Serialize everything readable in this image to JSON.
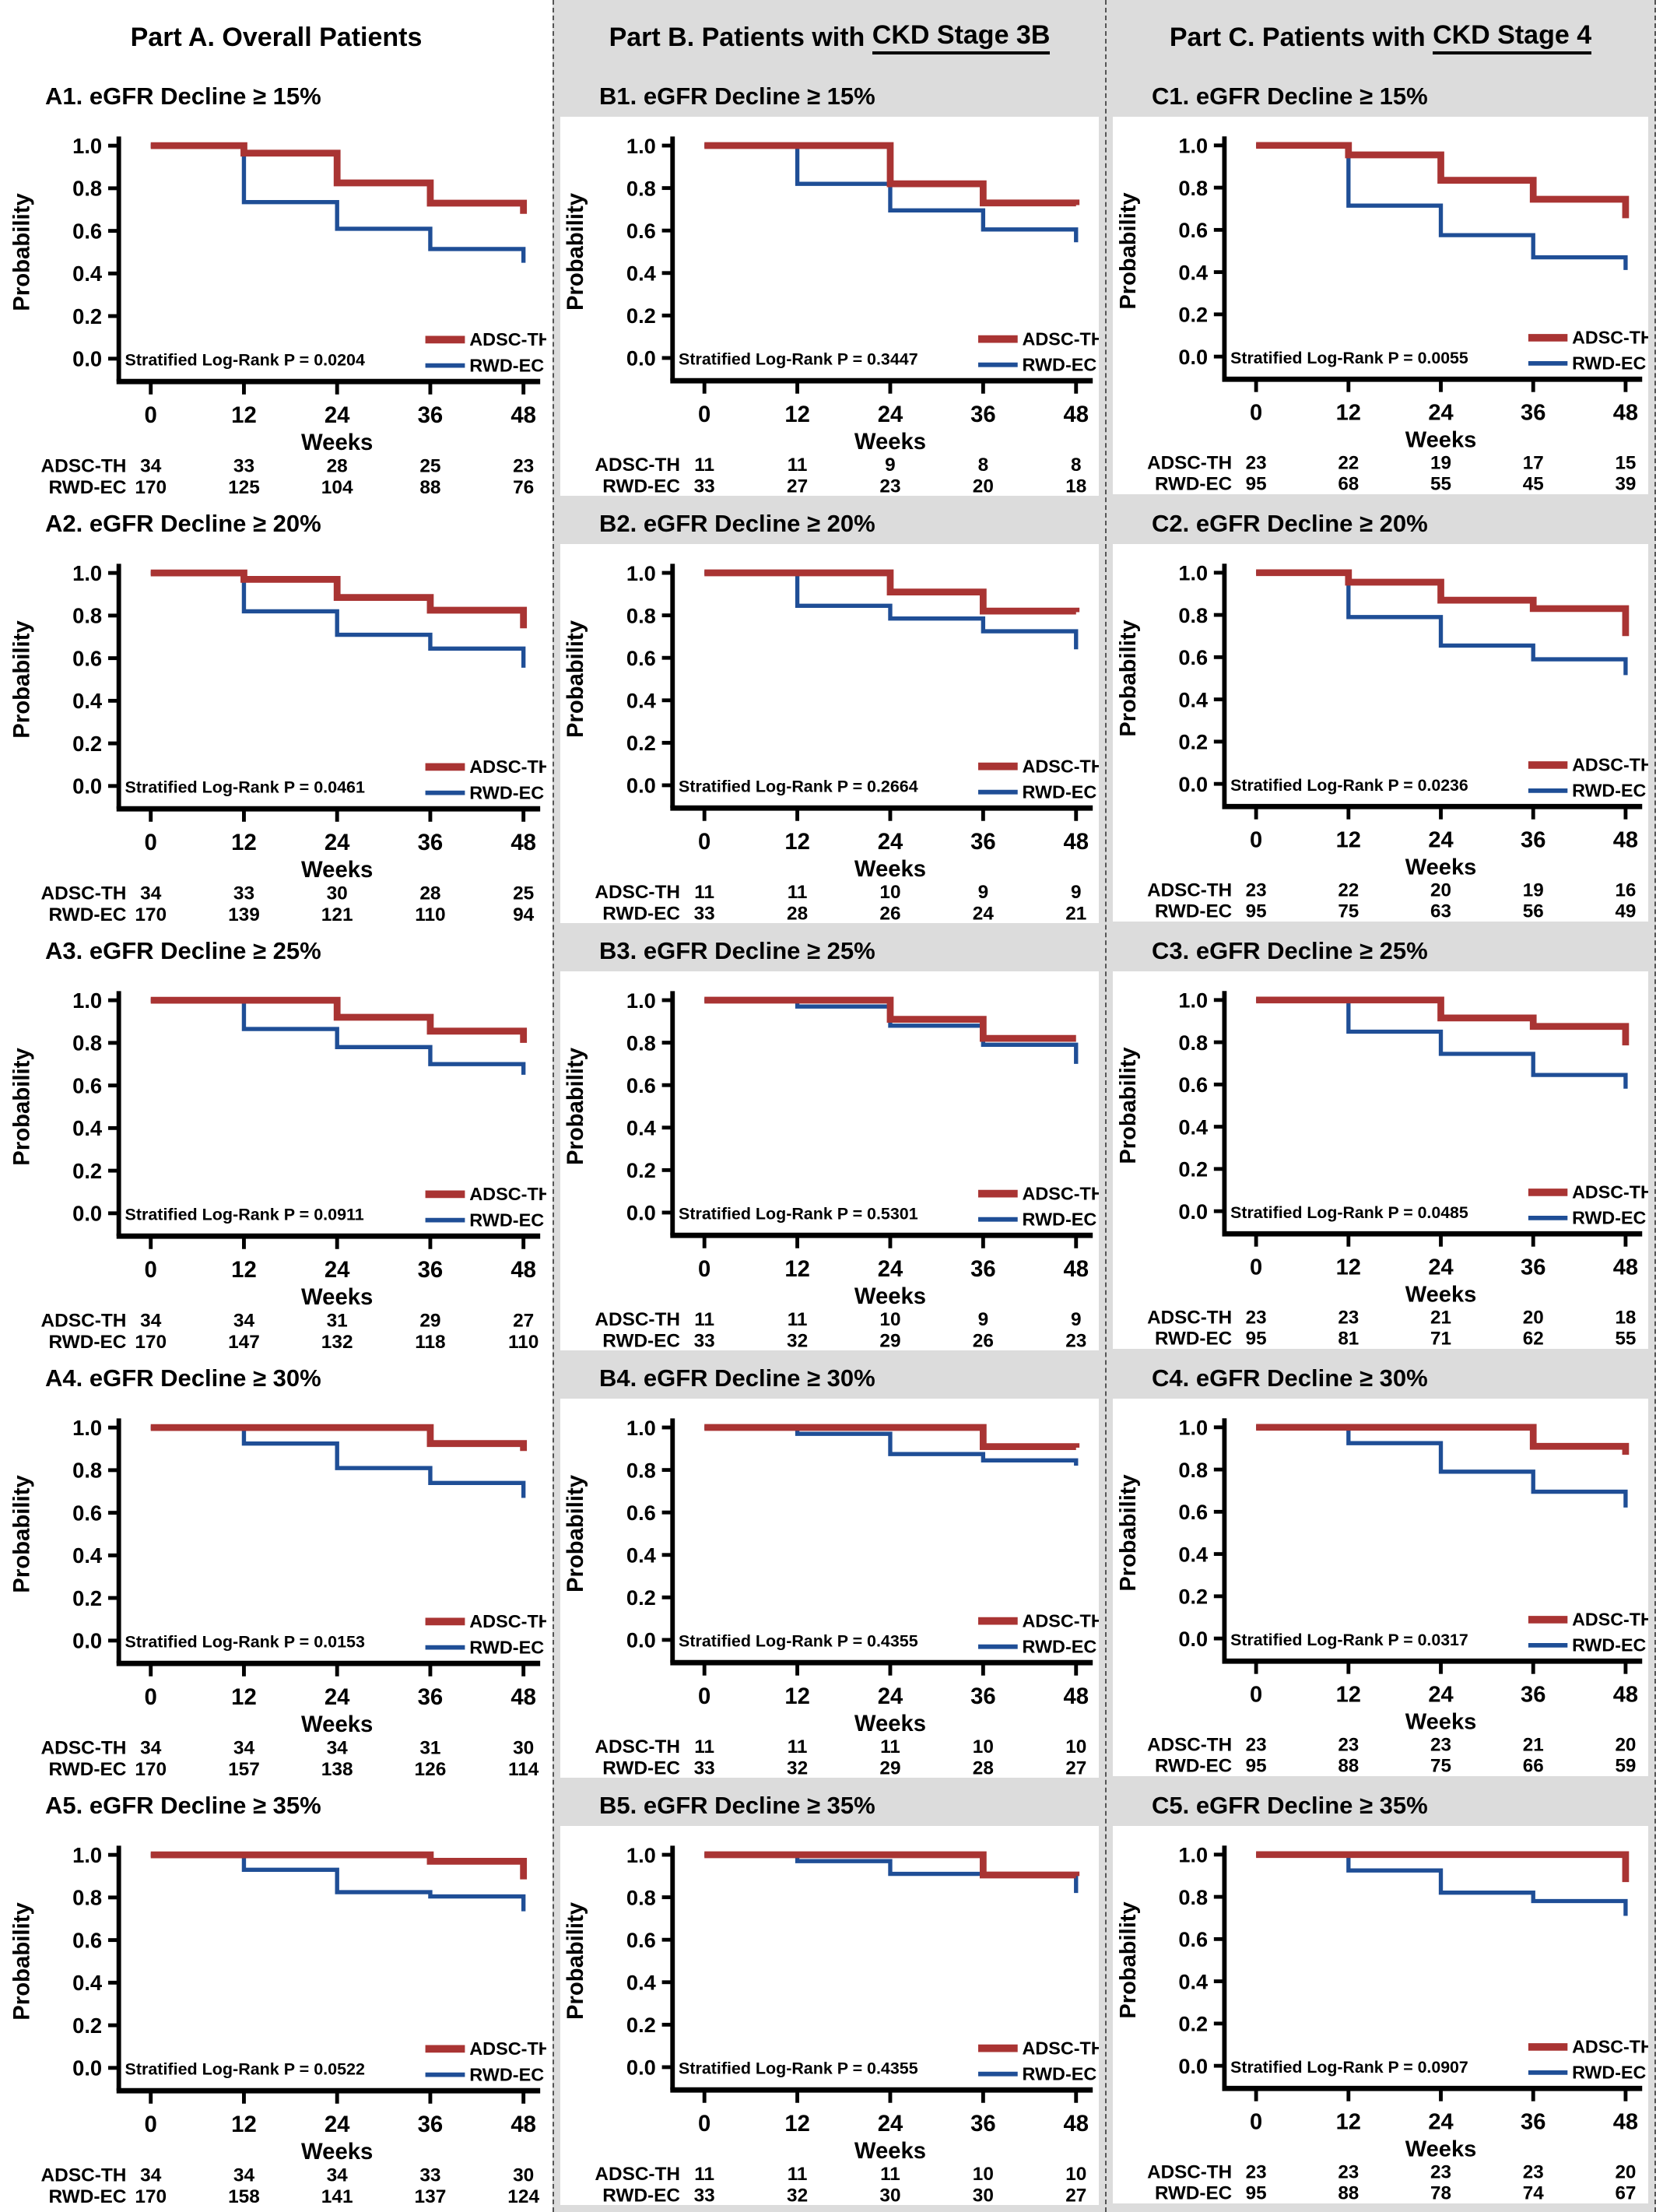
{
  "page": {
    "columns": [
      {
        "id": "A",
        "header_plain": "Part A. Overall Patients",
        "header_underlined": ""
      },
      {
        "id": "B",
        "header_plain": "Part B. Patients with ",
        "header_underlined": "CKD Stage 3B"
      },
      {
        "id": "C",
        "header_plain": "Part C. Patients with ",
        "header_underlined": "CKD Stage 4"
      }
    ]
  },
  "axis": {
    "ylabel": "Probability",
    "xlabel": "Weeks",
    "ytick_labels": [
      "1.0",
      "0.8",
      "0.6",
      "0.4",
      "0.2",
      "0.0"
    ],
    "ytick_values": [
      1.0,
      0.8,
      0.6,
      0.4,
      0.2,
      0.0
    ],
    "xticks": [
      0,
      12,
      24,
      36,
      48
    ],
    "xlim": [
      0,
      48
    ],
    "ylim": [
      0.0,
      1.0
    ],
    "grid": false
  },
  "legend": {
    "entries": [
      "ADSC-TH",
      "RWD-EC"
    ],
    "position": "inside-lower-right"
  },
  "colors": {
    "ADSC-TH": "#A93433",
    "RWD-EC": "#1F4E96",
    "column_bg": "#DCDCDC",
    "plot_bg": "#FFFFFF",
    "axis": "#000000"
  },
  "risk_table": {
    "row_labels": [
      "ADSC-TH",
      "RWD-EC"
    ]
  },
  "p_prefix": "Stratified Log-Rank P = ",
  "chart_data": [
    {
      "id": "A1",
      "column": "A",
      "type": "line",
      "title": "A1. eGFR Decline ≥ 15%",
      "p_value": "0.0204",
      "series": [
        {
          "name": "ADSC-TH",
          "steps": [
            [
              0,
              1.0
            ],
            [
              12,
              0.965
            ],
            [
              24,
              0.825
            ],
            [
              36,
              0.73
            ],
            [
              48,
              0.68
            ]
          ]
        },
        {
          "name": "RWD-EC",
          "steps": [
            [
              0,
              1.0
            ],
            [
              12,
              0.735
            ],
            [
              24,
              0.61
            ],
            [
              36,
              0.515
            ],
            [
              48,
              0.45
            ]
          ]
        }
      ],
      "at_risk": {
        "ADSC-TH": [
          34,
          33,
          28,
          25,
          23
        ],
        "RWD-EC": [
          170,
          125,
          104,
          88,
          76
        ]
      }
    },
    {
      "id": "A2",
      "column": "A",
      "type": "line",
      "title": "A2. eGFR Decline ≥ 20%",
      "p_value": "0.0461",
      "series": [
        {
          "name": "ADSC-TH",
          "steps": [
            [
              0,
              1.0
            ],
            [
              12,
              0.97
            ],
            [
              24,
              0.885
            ],
            [
              36,
              0.825
            ],
            [
              48,
              0.74
            ]
          ]
        },
        {
          "name": "RWD-EC",
          "steps": [
            [
              0,
              1.0
            ],
            [
              12,
              0.82
            ],
            [
              24,
              0.71
            ],
            [
              36,
              0.645
            ],
            [
              48,
              0.555
            ]
          ]
        }
      ],
      "at_risk": {
        "ADSC-TH": [
          34,
          33,
          30,
          28,
          25
        ],
        "RWD-EC": [
          170,
          139,
          121,
          110,
          94
        ]
      }
    },
    {
      "id": "A3",
      "column": "A",
      "type": "line",
      "title": "A3. eGFR Decline ≥ 25%",
      "p_value": "0.0911",
      "series": [
        {
          "name": "ADSC-TH",
          "steps": [
            [
              0,
              1.0
            ],
            [
              24,
              0.92
            ],
            [
              36,
              0.855
            ],
            [
              48,
              0.8
            ]
          ]
        },
        {
          "name": "RWD-EC",
          "steps": [
            [
              0,
              1.0
            ],
            [
              12,
              0.865
            ],
            [
              24,
              0.78
            ],
            [
              36,
              0.7
            ],
            [
              48,
              0.65
            ]
          ]
        }
      ],
      "at_risk": {
        "ADSC-TH": [
          34,
          34,
          31,
          29,
          27
        ],
        "RWD-EC": [
          170,
          147,
          132,
          118,
          110
        ]
      }
    },
    {
      "id": "A4",
      "column": "A",
      "type": "line",
      "title": "A4. eGFR Decline ≥ 30%",
      "p_value": "0.0153",
      "series": [
        {
          "name": "ADSC-TH",
          "steps": [
            [
              0,
              1.0
            ],
            [
              36,
              0.925
            ],
            [
              48,
              0.89
            ]
          ]
        },
        {
          "name": "RWD-EC",
          "steps": [
            [
              0,
              1.0
            ],
            [
              12,
              0.925
            ],
            [
              24,
              0.81
            ],
            [
              36,
              0.74
            ],
            [
              48,
              0.67
            ]
          ]
        }
      ],
      "at_risk": {
        "ADSC-TH": [
          34,
          34,
          34,
          31,
          30
        ],
        "RWD-EC": [
          170,
          157,
          138,
          126,
          114
        ]
      }
    },
    {
      "id": "A5",
      "column": "A",
      "type": "line",
      "title": "A5. eGFR Decline ≥ 35%",
      "p_value": "0.0522",
      "series": [
        {
          "name": "ADSC-TH",
          "steps": [
            [
              0,
              1.0
            ],
            [
              36,
              0.97
            ],
            [
              48,
              0.885
            ]
          ]
        },
        {
          "name": "RWD-EC",
          "steps": [
            [
              0,
              1.0
            ],
            [
              12,
              0.93
            ],
            [
              24,
              0.825
            ],
            [
              36,
              0.805
            ],
            [
              48,
              0.735
            ]
          ]
        }
      ],
      "at_risk": {
        "ADSC-TH": [
          34,
          34,
          34,
          33,
          30
        ],
        "RWD-EC": [
          170,
          158,
          141,
          137,
          124
        ]
      }
    },
    {
      "id": "B1",
      "column": "B",
      "type": "line",
      "title": "B1. eGFR Decline ≥ 15%",
      "p_value": "0.3447",
      "series": [
        {
          "name": "ADSC-TH",
          "steps": [
            [
              0,
              1.0
            ],
            [
              24,
              0.82
            ],
            [
              36,
              0.73
            ],
            [
              48,
              0.72
            ]
          ]
        },
        {
          "name": "RWD-EC",
          "steps": [
            [
              0,
              1.0
            ],
            [
              12,
              0.82
            ],
            [
              24,
              0.695
            ],
            [
              36,
              0.605
            ],
            [
              48,
              0.545
            ]
          ]
        }
      ],
      "at_risk": {
        "ADSC-TH": [
          11,
          11,
          9,
          8,
          8
        ],
        "RWD-EC": [
          33,
          27,
          23,
          20,
          18
        ]
      }
    },
    {
      "id": "B2",
      "column": "B",
      "type": "line",
      "title": "B2. eGFR Decline ≥ 20%",
      "p_value": "0.2664",
      "series": [
        {
          "name": "ADSC-TH",
          "steps": [
            [
              0,
              1.0
            ],
            [
              24,
              0.91
            ],
            [
              36,
              0.82
            ],
            [
              48,
              0.815
            ]
          ]
        },
        {
          "name": "RWD-EC",
          "steps": [
            [
              0,
              1.0
            ],
            [
              12,
              0.845
            ],
            [
              24,
              0.785
            ],
            [
              36,
              0.725
            ],
            [
              48,
              0.64
            ]
          ]
        }
      ],
      "at_risk": {
        "ADSC-TH": [
          11,
          11,
          10,
          9,
          9
        ],
        "RWD-EC": [
          33,
          28,
          26,
          24,
          21
        ]
      }
    },
    {
      "id": "B3",
      "column": "B",
      "type": "line",
      "title": "B3. eGFR Decline ≥ 25%",
      "p_value": "0.5301",
      "series": [
        {
          "name": "ADSC-TH",
          "steps": [
            [
              0,
              1.0
            ],
            [
              24,
              0.91
            ],
            [
              36,
              0.82
            ],
            [
              48,
              0.82
            ]
          ]
        },
        {
          "name": "RWD-EC",
          "steps": [
            [
              0,
              1.0
            ],
            [
              12,
              0.97
            ],
            [
              24,
              0.88
            ],
            [
              36,
              0.79
            ],
            [
              48,
              0.7
            ]
          ]
        }
      ],
      "at_risk": {
        "ADSC-TH": [
          11,
          11,
          10,
          9,
          9
        ],
        "RWD-EC": [
          33,
          32,
          29,
          26,
          23
        ]
      }
    },
    {
      "id": "B4",
      "column": "B",
      "type": "line",
      "title": "B4. eGFR Decline ≥ 30%",
      "p_value": "0.4355",
      "series": [
        {
          "name": "ADSC-TH",
          "steps": [
            [
              0,
              1.0
            ],
            [
              36,
              0.91
            ],
            [
              48,
              0.905
            ]
          ]
        },
        {
          "name": "RWD-EC",
          "steps": [
            [
              0,
              1.0
            ],
            [
              12,
              0.97
            ],
            [
              24,
              0.875
            ],
            [
              36,
              0.845
            ],
            [
              48,
              0.82
            ]
          ]
        }
      ],
      "at_risk": {
        "ADSC-TH": [
          11,
          11,
          11,
          10,
          10
        ],
        "RWD-EC": [
          33,
          32,
          29,
          28,
          27
        ]
      }
    },
    {
      "id": "B5",
      "column": "B",
      "type": "line",
      "title": "B5. eGFR Decline ≥ 35%",
      "p_value": "0.4355",
      "series": [
        {
          "name": "ADSC-TH",
          "steps": [
            [
              0,
              1.0
            ],
            [
              36,
              0.905
            ],
            [
              48,
              0.9
            ]
          ]
        },
        {
          "name": "RWD-EC",
          "steps": [
            [
              0,
              1.0
            ],
            [
              12,
              0.97
            ],
            [
              24,
              0.91
            ],
            [
              36,
              0.905
            ],
            [
              48,
              0.82
            ]
          ]
        }
      ],
      "at_risk": {
        "ADSC-TH": [
          11,
          11,
          11,
          10,
          10
        ],
        "RWD-EC": [
          33,
          32,
          30,
          30,
          27
        ]
      }
    },
    {
      "id": "C1",
      "column": "C",
      "type": "line",
      "title": "C1. eGFR Decline ≥ 15%",
      "p_value": "0.0055",
      "series": [
        {
          "name": "ADSC-TH",
          "steps": [
            [
              0,
              1.0
            ],
            [
              12,
              0.955
            ],
            [
              24,
              0.835
            ],
            [
              36,
              0.745
            ],
            [
              48,
              0.655
            ]
          ]
        },
        {
          "name": "RWD-EC",
          "steps": [
            [
              0,
              1.0
            ],
            [
              12,
              0.715
            ],
            [
              24,
              0.575
            ],
            [
              36,
              0.47
            ],
            [
              48,
              0.41
            ]
          ]
        }
      ],
      "at_risk": {
        "ADSC-TH": [
          23,
          22,
          19,
          17,
          15
        ],
        "RWD-EC": [
          95,
          68,
          55,
          45,
          39
        ]
      }
    },
    {
      "id": "C2",
      "column": "C",
      "type": "line",
      "title": "C2. eGFR Decline ≥ 20%",
      "p_value": "0.0236",
      "series": [
        {
          "name": "ADSC-TH",
          "steps": [
            [
              0,
              1.0
            ],
            [
              12,
              0.955
            ],
            [
              24,
              0.87
            ],
            [
              36,
              0.83
            ],
            [
              48,
              0.7
            ]
          ]
        },
        {
          "name": "RWD-EC",
          "steps": [
            [
              0,
              1.0
            ],
            [
              12,
              0.79
            ],
            [
              24,
              0.655
            ],
            [
              36,
              0.59
            ],
            [
              48,
              0.515
            ]
          ]
        }
      ],
      "at_risk": {
        "ADSC-TH": [
          23,
          22,
          20,
          19,
          16
        ],
        "RWD-EC": [
          95,
          75,
          63,
          56,
          49
        ]
      }
    },
    {
      "id": "C3",
      "column": "C",
      "type": "line",
      "title": "C3. eGFR Decline ≥ 25%",
      "p_value": "0.0485",
      "series": [
        {
          "name": "ADSC-TH",
          "steps": [
            [
              0,
              1.0
            ],
            [
              24,
              0.915
            ],
            [
              36,
              0.875
            ],
            [
              48,
              0.785
            ]
          ]
        },
        {
          "name": "RWD-EC",
          "steps": [
            [
              0,
              1.0
            ],
            [
              12,
              0.85
            ],
            [
              24,
              0.745
            ],
            [
              36,
              0.645
            ],
            [
              48,
              0.58
            ]
          ]
        }
      ],
      "at_risk": {
        "ADSC-TH": [
          23,
          23,
          21,
          20,
          18
        ],
        "RWD-EC": [
          95,
          81,
          71,
          62,
          55
        ]
      }
    },
    {
      "id": "C4",
      "column": "C",
      "type": "line",
      "title": "C4. eGFR Decline ≥ 30%",
      "p_value": "0.0317",
      "series": [
        {
          "name": "ADSC-TH",
          "steps": [
            [
              0,
              1.0
            ],
            [
              36,
              0.91
            ],
            [
              48,
              0.87
            ]
          ]
        },
        {
          "name": "RWD-EC",
          "steps": [
            [
              0,
              1.0
            ],
            [
              12,
              0.925
            ],
            [
              24,
              0.79
            ],
            [
              36,
              0.695
            ],
            [
              48,
              0.62
            ]
          ]
        }
      ],
      "at_risk": {
        "ADSC-TH": [
          23,
          23,
          23,
          21,
          20
        ],
        "RWD-EC": [
          95,
          88,
          75,
          66,
          59
        ]
      }
    },
    {
      "id": "C5",
      "column": "C",
      "type": "line",
      "title": "C5. eGFR Decline ≥ 35%",
      "p_value": "0.0907",
      "series": [
        {
          "name": "ADSC-TH",
          "steps": [
            [
              0,
              1.0
            ],
            [
              48,
              0.87
            ]
          ]
        },
        {
          "name": "RWD-EC",
          "steps": [
            [
              0,
              1.0
            ],
            [
              12,
              0.925
            ],
            [
              24,
              0.82
            ],
            [
              36,
              0.78
            ],
            [
              48,
              0.71
            ]
          ]
        }
      ],
      "at_risk": {
        "ADSC-TH": [
          23,
          23,
          23,
          23,
          20
        ],
        "RWD-EC": [
          95,
          88,
          78,
          74,
          67
        ]
      }
    }
  ]
}
